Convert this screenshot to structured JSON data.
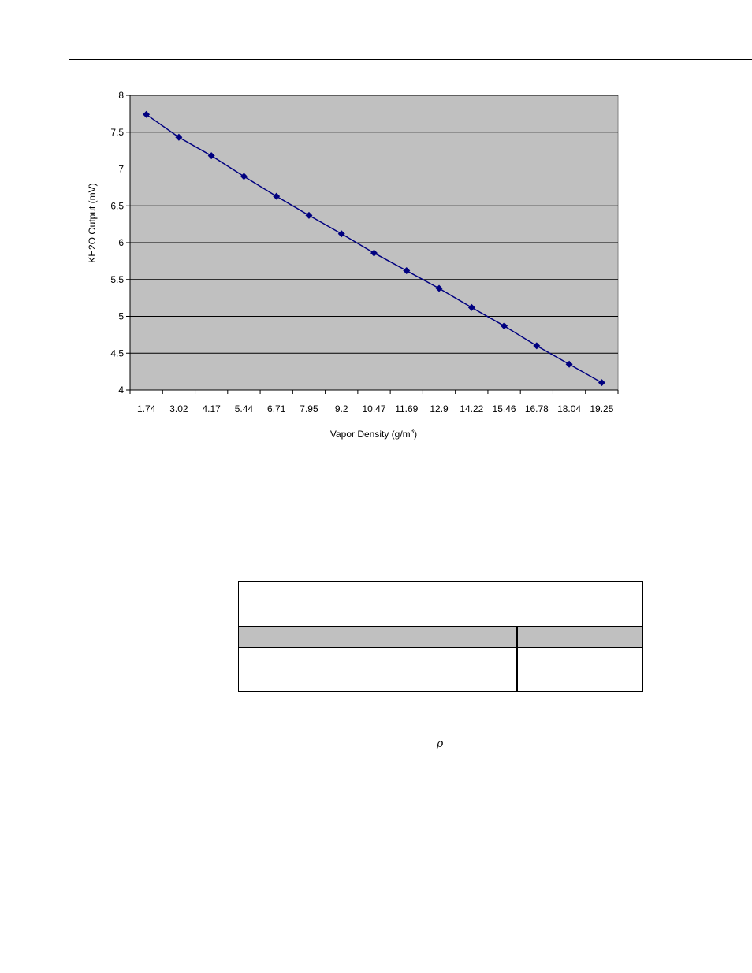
{
  "chart_data": {
    "type": "line",
    "title": "",
    "xlabel": "Vapor Density (g/m",
    "xlabel_sup": "3",
    "xlabel_tail": ")",
    "ylabel": "KH2O Output (mV)",
    "ylim": [
      4,
      8
    ],
    "yticks": [
      "4",
      "4.5",
      "5",
      "5.5",
      "6",
      "6.5",
      "7",
      "7.5",
      "8"
    ],
    "grid": "horizontal",
    "categories": [
      "1.74",
      "3.02",
      "4.17",
      "5.44",
      "6.71",
      "7.95",
      "9.2",
      "10.47",
      "11.69",
      "12.9",
      "14.22",
      "15.46",
      "16.78",
      "18.04",
      "19.25"
    ],
    "series": [
      {
        "values": [
          7.74,
          7.43,
          7.18,
          6.9,
          6.63,
          6.37,
          6.12,
          5.86,
          5.62,
          5.38,
          5.12,
          4.87,
          4.6,
          4.35,
          4.1
        ],
        "color": "#000080"
      }
    ],
    "colors": {
      "plot_bg": "#c0c0c0",
      "line": "#000080"
    }
  },
  "symbols": {
    "rho": "ρ"
  },
  "table": {
    "title": "",
    "headers": [
      "",
      ""
    ],
    "rows": [
      [
        "",
        ""
      ],
      [
        "",
        ""
      ]
    ]
  }
}
